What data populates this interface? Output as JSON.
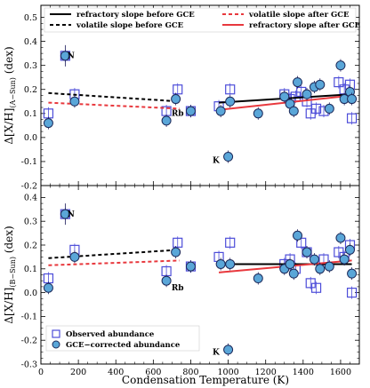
{
  "chart_data": {
    "type": "scatter",
    "xlabel": "Condensation Temperature (K)",
    "xlim": [
      0,
      1700
    ],
    "xticks": [
      0,
      200,
      400,
      600,
      800,
      1000,
      1200,
      1400,
      1600
    ],
    "legend_top": [
      {
        "label": "refractory slope before GCE",
        "color": "#000000",
        "dash": "solid"
      },
      {
        "label": "volatile slope before GCE",
        "color": "#000000",
        "dash": "dashed"
      },
      {
        "label": "volatile slope after GCE",
        "color": "#e8383d",
        "dash": "dashed"
      },
      {
        "label": "refractory slope after GCE",
        "color": "#e8383d",
        "dash": "solid"
      }
    ],
    "legend_bottom": [
      {
        "label": "Observed abundance",
        "marker": "square"
      },
      {
        "label": "GCE−corrected abundance",
        "marker": "circle"
      }
    ],
    "colors": {
      "observed": "#4d4dd9",
      "corrected_fill": "#5aa6d8",
      "red": "#e8383d"
    },
    "panels": [
      {
        "ylabel": "Δ[X/H]₍ₐ₋ₛᵤₙ₎ (dex)",
        "ylabel_main": "Δ[X/H]",
        "ylabel_sub": "(A−Sun)",
        "ylabel_tail": " (dex)",
        "ylim": [
          -0.2,
          0.55
        ],
        "yticks": [
          -0.2,
          -0.1,
          0.0,
          0.1,
          0.2,
          0.3,
          0.4,
          0.5
        ],
        "annotations": [
          {
            "text": "N",
            "x": 160,
            "y": 0.33
          },
          {
            "text": "Rb",
            "x": 730,
            "y": 0.09
          },
          {
            "text": "K",
            "x": 935,
            "y": -0.105
          }
        ],
        "observed": [
          [
            40,
            0.1
          ],
          [
            130,
            0.34
          ],
          [
            180,
            0.18
          ],
          [
            670,
            0.11
          ],
          [
            730,
            0.2
          ],
          [
            800,
            0.11
          ],
          [
            950,
            0.13
          ],
          [
            1010,
            0.2
          ],
          [
            1300,
            0.18
          ],
          [
            1330,
            0.16
          ],
          [
            1360,
            0.17
          ],
          [
            1390,
            0.19
          ],
          [
            1420,
            0.15
          ],
          [
            1440,
            0.1
          ],
          [
            1470,
            0.12
          ],
          [
            1510,
            0.11
          ],
          [
            1590,
            0.23
          ],
          [
            1620,
            0.2
          ],
          [
            1650,
            0.22
          ],
          [
            1660,
            0.08
          ]
        ],
        "corrected": [
          [
            40,
            0.06
          ],
          [
            130,
            0.34
          ],
          [
            180,
            0.15
          ],
          [
            670,
            0.07
          ],
          [
            720,
            0.16
          ],
          [
            800,
            0.11
          ],
          [
            960,
            0.11
          ],
          [
            1000,
            -0.08
          ],
          [
            1010,
            0.15
          ],
          [
            1160,
            0.1
          ],
          [
            1300,
            0.17
          ],
          [
            1330,
            0.14
          ],
          [
            1350,
            0.11
          ],
          [
            1370,
            0.23
          ],
          [
            1420,
            0.18
          ],
          [
            1460,
            0.21
          ],
          [
            1490,
            0.22
          ],
          [
            1540,
            0.12
          ],
          [
            1600,
            0.3
          ],
          [
            1620,
            0.16
          ],
          [
            1650,
            0.19
          ],
          [
            1660,
            0.16
          ]
        ],
        "lines": [
          {
            "x": [
              40,
              740
            ],
            "y": [
              0.185,
              0.15
            ],
            "color": "#000000",
            "dash": "dashed"
          },
          {
            "x": [
              40,
              740
            ],
            "y": [
              0.145,
              0.12
            ],
            "color": "#e8383d",
            "dash": "dashed"
          },
          {
            "x": [
              950,
              1660
            ],
            "y": [
              0.145,
              0.18
            ],
            "color": "#000000",
            "dash": "solid"
          },
          {
            "x": [
              950,
              1660
            ],
            "y": [
              0.115,
              0.175
            ],
            "color": "#e8383d",
            "dash": "solid"
          }
        ]
      },
      {
        "ylabel_main": "Δ[X/H]",
        "ylabel_sub": "(B−Sun)",
        "ylabel_tail": " (dex)",
        "ylim": [
          -0.3,
          0.45
        ],
        "yticks": [
          -0.3,
          -0.2,
          -0.1,
          0.0,
          0.1,
          0.2,
          0.3,
          0.4
        ],
        "annotations": [
          {
            "text": "N",
            "x": 160,
            "y": 0.32
          },
          {
            "text": "Rb",
            "x": 730,
            "y": 0.01
          },
          {
            "text": "K",
            "x": 935,
            "y": -0.26
          }
        ],
        "observed": [
          [
            40,
            0.06
          ],
          [
            130,
            0.33
          ],
          [
            180,
            0.18
          ],
          [
            670,
            0.09
          ],
          [
            730,
            0.21
          ],
          [
            800,
            0.11
          ],
          [
            950,
            0.15
          ],
          [
            1010,
            0.21
          ],
          [
            1300,
            0.12
          ],
          [
            1330,
            0.14
          ],
          [
            1360,
            0.1
          ],
          [
            1390,
            0.21
          ],
          [
            1420,
            0.17
          ],
          [
            1440,
            0.04
          ],
          [
            1470,
            0.02
          ],
          [
            1510,
            0.14
          ],
          [
            1590,
            0.17
          ],
          [
            1620,
            0.15
          ],
          [
            1650,
            0.2
          ],
          [
            1660,
            0.0
          ]
        ],
        "corrected": [
          [
            40,
            0.02
          ],
          [
            130,
            0.33
          ],
          [
            180,
            0.15
          ],
          [
            670,
            0.05
          ],
          [
            720,
            0.17
          ],
          [
            800,
            0.11
          ],
          [
            960,
            0.12
          ],
          [
            1000,
            -0.24
          ],
          [
            1010,
            0.12
          ],
          [
            1160,
            0.06
          ],
          [
            1300,
            0.1
          ],
          [
            1330,
            0.12
          ],
          [
            1350,
            0.08
          ],
          [
            1370,
            0.24
          ],
          [
            1420,
            0.17
          ],
          [
            1460,
            0.14
          ],
          [
            1490,
            0.1
          ],
          [
            1540,
            0.11
          ],
          [
            1600,
            0.23
          ],
          [
            1620,
            0.14
          ],
          [
            1650,
            0.18
          ],
          [
            1660,
            0.08
          ]
        ],
        "lines": [
          {
            "x": [
              40,
              740
            ],
            "y": [
              0.145,
              0.18
            ],
            "color": "#000000",
            "dash": "dashed"
          },
          {
            "x": [
              40,
              740
            ],
            "y": [
              0.115,
              0.135
            ],
            "color": "#e8383d",
            "dash": "dashed"
          },
          {
            "x": [
              950,
              1660
            ],
            "y": [
              0.12,
              0.12
            ],
            "color": "#000000",
            "dash": "solid"
          },
          {
            "x": [
              950,
              1660
            ],
            "y": [
              0.085,
              0.135
            ],
            "color": "#e8383d",
            "dash": "solid"
          }
        ]
      }
    ]
  }
}
